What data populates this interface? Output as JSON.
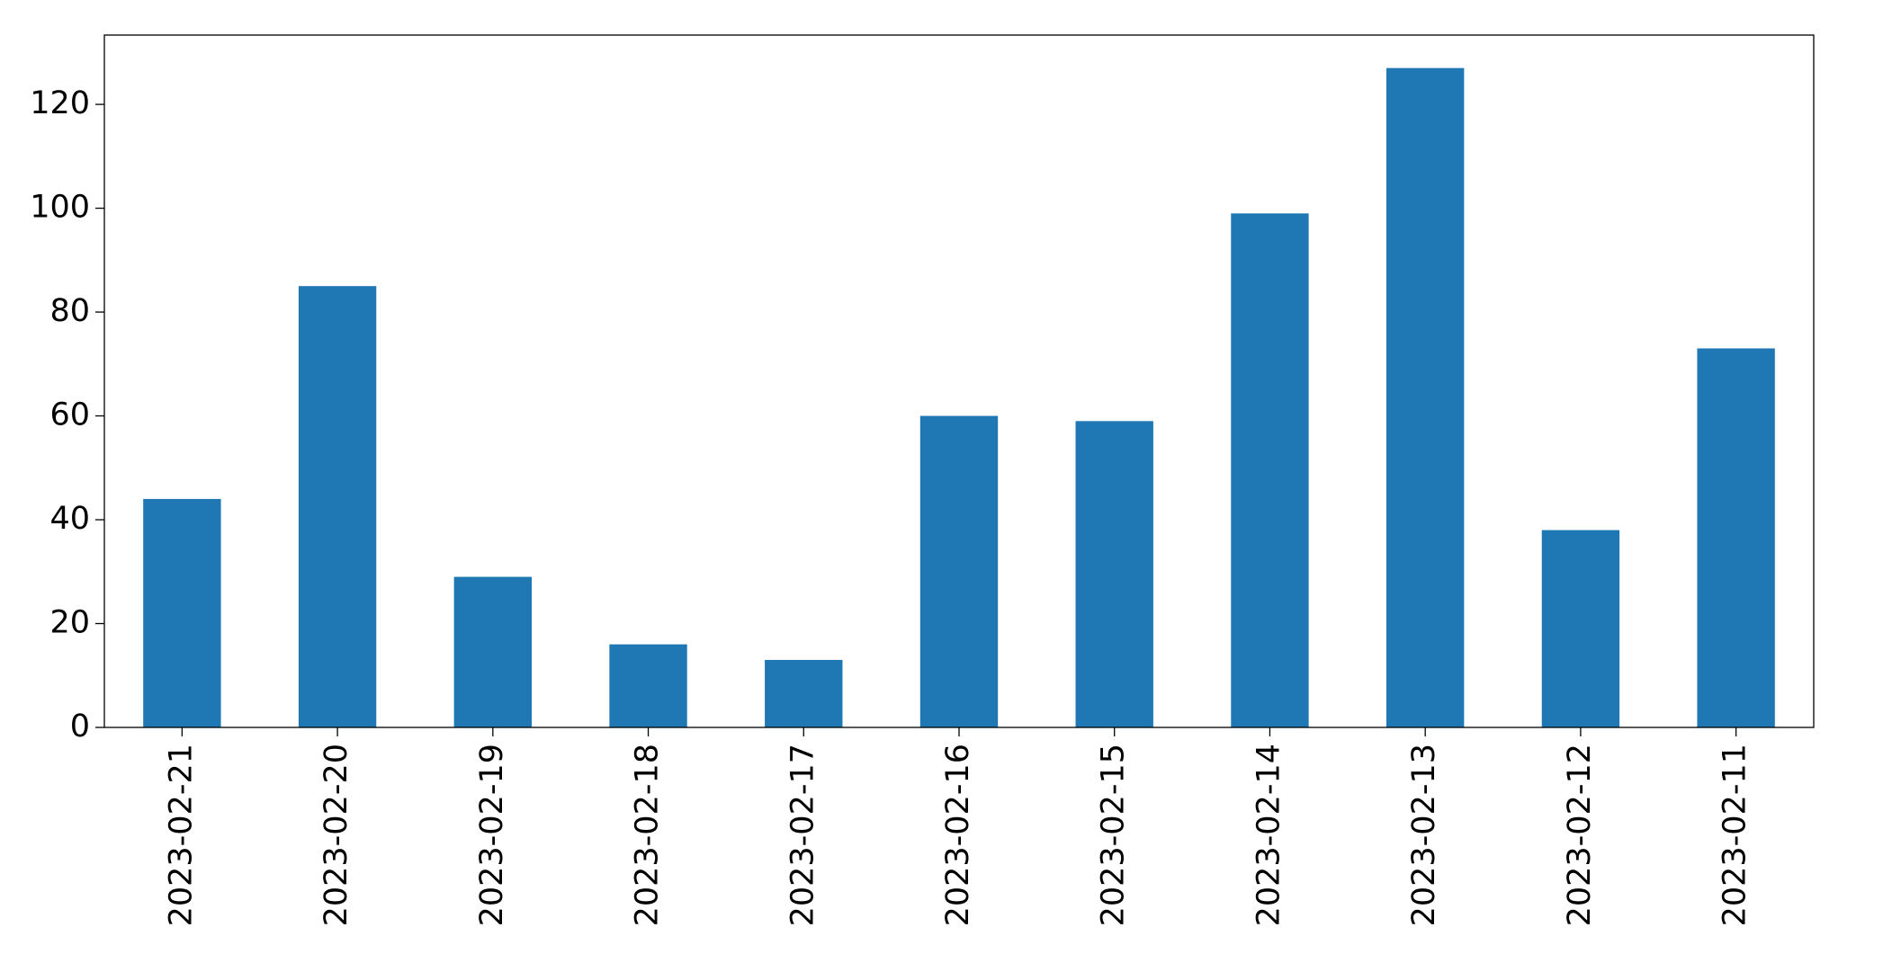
{
  "chart_data": {
    "type": "bar",
    "categories": [
      "2023-02-21",
      "2023-02-20",
      "2023-02-19",
      "2023-02-18",
      "2023-02-17",
      "2023-02-16",
      "2023-02-15",
      "2023-02-14",
      "2023-02-13",
      "2023-02-12",
      "2023-02-11"
    ],
    "values": [
      44,
      85,
      29,
      16,
      13,
      60,
      59,
      99,
      127,
      38,
      73
    ],
    "color": "#1f77b4",
    "ylim": [
      0,
      133.35
    ],
    "yticks": [
      0,
      20,
      40,
      60,
      80,
      100,
      120
    ],
    "grid": false
  }
}
